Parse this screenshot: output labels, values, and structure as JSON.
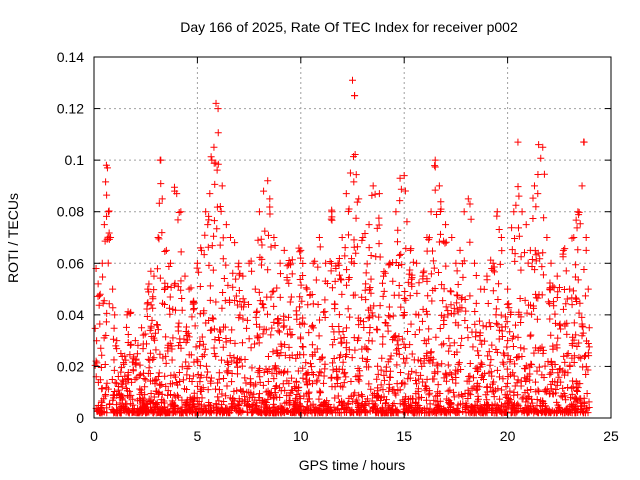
{
  "chart_data": {
    "type": "scatter",
    "title": "Day 166 of 2025, Rate Of TEC Index for receiver p002",
    "xlabel": "GPS time / hours",
    "ylabel": "ROTI / TECUs",
    "xlim": [
      0,
      25
    ],
    "ylim": [
      0,
      0.14
    ],
    "x_ticks": [
      0,
      5,
      10,
      15,
      20,
      25
    ],
    "x_tick_labels": [
      "0",
      "5",
      "10",
      "15",
      "20",
      "25"
    ],
    "y_ticks": [
      0,
      0.02,
      0.04,
      0.06,
      0.08,
      0.1,
      0.12,
      0.14
    ],
    "y_tick_labels": [
      "0",
      "0.02",
      "0.04",
      "0.06",
      "0.08",
      "0.1",
      "0.12",
      "0.14"
    ],
    "grid": true,
    "marker": "plus",
    "marker_color": "#ff0000",
    "series": [
      {
        "x": [
          0.1,
          0.2,
          0.3,
          0.4,
          0.5,
          0.6,
          0.65,
          0.7,
          0.8,
          0.9,
          1.0,
          1.1,
          1.3,
          1.6,
          2.0,
          2.3,
          2.6,
          2.9,
          3.1,
          3.2,
          3.3,
          3.5,
          3.7,
          3.9,
          4.0,
          4.2,
          4.4,
          4.6,
          4.8,
          5.0,
          5.2,
          5.4,
          5.6,
          5.7,
          5.8,
          5.9,
          6.0,
          6.2,
          6.4,
          6.6,
          6.8,
          7.0,
          7.2,
          7.5,
          7.8,
          8.0,
          8.2,
          8.4,
          8.5,
          8.7,
          9.0,
          9.2,
          9.5,
          9.8,
          10.0,
          10.3,
          10.6,
          10.9,
          11.2,
          11.5,
          11.8,
          12.0,
          12.2,
          12.4,
          12.5,
          12.6,
          12.8,
          13.0,
          13.3,
          13.5,
          13.8,
          14.0,
          14.3,
          14.6,
          14.8,
          15.0,
          15.3,
          15.6,
          15.9,
          16.1,
          16.3,
          16.5,
          16.7,
          17.0,
          17.3,
          17.5,
          17.7,
          17.9,
          18.1,
          18.4,
          18.7,
          19.0,
          19.3,
          19.5,
          19.7,
          20.0,
          20.3,
          20.5,
          20.7,
          20.9,
          21.1,
          21.3,
          21.5,
          21.7,
          21.9,
          22.1,
          22.4,
          22.7,
          23.0,
          23.2,
          23.4,
          23.6,
          23.7,
          23.8,
          23.9
        ],
        "y": [
          0.058,
          0.052,
          0.048,
          0.06,
          0.075,
          0.098,
          0.097,
          0.08,
          0.07,
          0.05,
          0.04,
          0.03,
          0.025,
          0.04,
          0.03,
          0.035,
          0.05,
          0.055,
          0.07,
          0.1,
          0.085,
          0.065,
          0.06,
          0.088,
          0.087,
          0.08,
          0.055,
          0.05,
          0.045,
          0.06,
          0.065,
          0.08,
          0.087,
          0.1,
          0.105,
          0.122,
          0.12,
          0.09,
          0.075,
          0.07,
          0.068,
          0.06,
          0.055,
          0.06,
          0.05,
          0.08,
          0.088,
          0.092,
          0.085,
          0.07,
          0.06,
          0.065,
          0.06,
          0.04,
          0.065,
          0.05,
          0.06,
          0.07,
          0.06,
          0.08,
          0.06,
          0.07,
          0.087,
          0.095,
          0.131,
          0.125,
          0.085,
          0.07,
          0.075,
          0.09,
          0.087,
          0.055,
          0.06,
          0.08,
          0.093,
          0.094,
          0.065,
          0.06,
          0.055,
          0.07,
          0.08,
          0.1,
          0.09,
          0.075,
          0.07,
          0.06,
          0.065,
          0.08,
          0.085,
          0.06,
          0.05,
          0.055,
          0.06,
          0.08,
          0.07,
          0.05,
          0.08,
          0.107,
          0.08,
          0.075,
          0.065,
          0.09,
          0.106,
          0.105,
          0.07,
          0.06,
          0.055,
          0.065,
          0.05,
          0.07,
          0.08,
          0.09,
          0.107,
          0.07,
          0.05
        ]
      }
    ]
  }
}
